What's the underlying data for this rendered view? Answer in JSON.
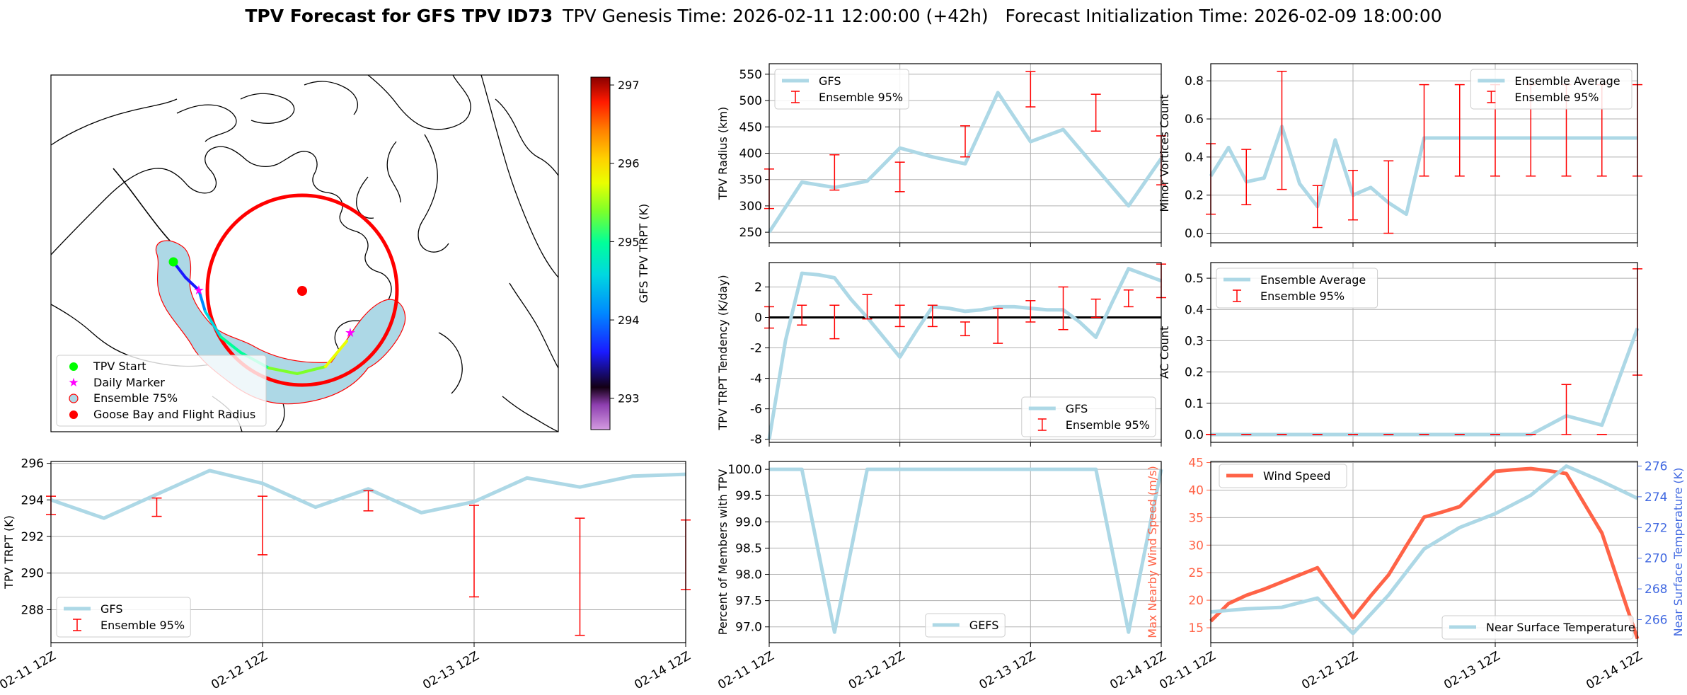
{
  "title": {
    "bold": "TPV Forecast for GFS TPV ID73",
    "rest": "TPV Genesis Time: 2026-02-11 12:00:00 (+42h)   Forecast Initialization Time: 2026-02-09 18:00:00"
  },
  "colors": {
    "series": "#add8e6",
    "errorbar": "#ff0000",
    "wind": "#ff6347",
    "temp_axis": "#4169e1",
    "start": "#00ff00",
    "marker": "#ff00ff",
    "goose": "#ff0000"
  },
  "map": {
    "legend": [
      "TPV Start",
      "Daily Marker",
      "Ensemble 75%",
      "Goose Bay and Flight Radius"
    ],
    "colorbar": {
      "label": "GFS TPV TRPT (K)",
      "ticks": [
        293,
        294,
        295,
        296,
        297
      ],
      "range": [
        292.6,
        297.1
      ]
    },
    "track_trpt": [
      293.2,
      293.5,
      293.8,
      294.3,
      294.6,
      294.8,
      295.0,
      295.3,
      295.6
    ]
  },
  "chart_data": [
    {
      "id": "trpt",
      "type": "line",
      "ylabel": "TPV TRPT (K)",
      "ylim": [
        286.2,
        296.1
      ],
      "yticks": [
        288,
        290,
        292,
        294,
        296
      ],
      "xticks": [
        "02-11 12Z",
        "02-12 12Z",
        "02-13 12Z",
        "02-14 12Z"
      ],
      "xlim": [
        0,
        12
      ],
      "series": [
        {
          "name": "GFS",
          "x": [
            0,
            1,
            2,
            3,
            4,
            5,
            6,
            7,
            8,
            9,
            10,
            11,
            12
          ],
          "values": [
            294.0,
            293.0,
            294.3,
            295.6,
            294.9,
            293.6,
            294.6,
            293.3,
            293.9,
            295.2,
            294.7,
            295.3,
            295.4
          ]
        }
      ],
      "errorbars": {
        "name": "Ensemble 95%",
        "x": [
          0,
          2,
          4,
          6,
          8,
          10,
          12
        ],
        "low": [
          293.2,
          293.1,
          291.0,
          293.4,
          288.7,
          286.6,
          289.1
        ],
        "high": [
          294.2,
          294.1,
          294.2,
          294.5,
          293.7,
          293.0,
          292.9
        ]
      },
      "legend": [
        "GFS",
        "Ensemble 95%"
      ],
      "legend_loc": "lower-left"
    },
    {
      "id": "radius",
      "type": "line",
      "ylabel": "TPV Radius (km)",
      "ylim": [
        230,
        570
      ],
      "yticks": [
        250,
        300,
        350,
        400,
        450,
        500,
        550
      ],
      "xticks": [
        "02-11 12Z",
        "02-12 12Z",
        "02-13 12Z",
        "02-14 12Z"
      ],
      "xlim": [
        0,
        12
      ],
      "series": [
        {
          "name": "GFS",
          "x": [
            0,
            1,
            2,
            3,
            4,
            5,
            6,
            7,
            8,
            9,
            10,
            11,
            12
          ],
          "values": [
            250,
            345,
            335,
            347,
            410,
            393,
            380,
            515,
            422,
            445,
            372,
            300,
            390
          ]
        }
      ],
      "errorbars": {
        "name": "Ensemble 95%",
        "x": [
          0,
          2,
          4,
          6,
          8,
          10,
          12
        ],
        "low": [
          295,
          330,
          327,
          393,
          488,
          442,
          340
        ],
        "high": [
          370,
          397,
          383,
          452,
          555,
          512,
          433
        ]
      },
      "legend": [
        "GFS",
        "Ensemble 95%"
      ],
      "legend_loc": "upper-left"
    },
    {
      "id": "tendency",
      "type": "line",
      "ylabel": "TPV TRPT Tendency (K/day)",
      "ylim": [
        -8.2,
        3.6
      ],
      "yticks": [
        -8,
        -6,
        -4,
        -2,
        0,
        2
      ],
      "hline": 0,
      "xticks": [
        "02-11 12Z",
        "02-12 12Z",
        "02-13 12Z",
        "02-14 12Z"
      ],
      "xlim": [
        0,
        12
      ],
      "series": [
        {
          "name": "GFS",
          "x": [
            0,
            0.5,
            1,
            1.5,
            2,
            2.5,
            3,
            3.5,
            4,
            4.5,
            5,
            5.5,
            6,
            6.5,
            7,
            7.5,
            8,
            8.5,
            9,
            9.5,
            10,
            10.5,
            11,
            11.5,
            12
          ],
          "values": [
            -8.0,
            -1.5,
            2.9,
            2.8,
            2.6,
            1.2,
            0.0,
            -1.3,
            -2.6,
            -0.9,
            0.7,
            0.6,
            0.4,
            0.5,
            0.7,
            0.7,
            0.6,
            0.5,
            0.5,
            -0.3,
            -1.3,
            1.0,
            3.2,
            2.8,
            2.4
          ]
        }
      ],
      "errorbars": {
        "name": "Ensemble 95%",
        "x": [
          0,
          1,
          2,
          3,
          4,
          5,
          6,
          7,
          8,
          9,
          10,
          11,
          12
        ],
        "low": [
          -0.7,
          -0.5,
          -1.4,
          -0.1,
          -0.6,
          -0.6,
          -1.2,
          -1.7,
          -0.3,
          -0.8,
          0.0,
          0.7,
          1.3
        ],
        "high": [
          0.7,
          0.8,
          0.8,
          1.5,
          0.8,
          0.8,
          -0.3,
          0.6,
          1.1,
          2.0,
          1.2,
          1.8,
          3.5
        ]
      },
      "legend": [
        "GFS",
        "Ensemble 95%"
      ],
      "legend_loc": "lower-right"
    },
    {
      "id": "members",
      "type": "line",
      "ylabel": "Percent of Members with TPV",
      "ylim": [
        96.7,
        100.15
      ],
      "yticks": [
        97.0,
        97.5,
        98.0,
        98.5,
        99.0,
        99.5,
        100.0
      ],
      "xticks": [
        "02-11 12Z",
        "02-12 12Z",
        "02-13 12Z",
        "02-14 12Z"
      ],
      "xlim": [
        0,
        12
      ],
      "series": [
        {
          "name": "GEFS",
          "x": [
            0,
            1,
            2,
            3,
            4,
            5,
            6,
            7,
            8,
            9,
            10,
            11,
            12
          ],
          "values": [
            100,
            100,
            96.9,
            100,
            100,
            100,
            100,
            100,
            100,
            100,
            100,
            96.9,
            100
          ]
        }
      ],
      "legend": [
        "GEFS"
      ],
      "legend_loc": "lower-center"
    },
    {
      "id": "minor",
      "type": "line",
      "ylabel": "Minor Vortices Count",
      "ylim": [
        -0.05,
        0.89
      ],
      "yticks": [
        0.0,
        0.2,
        0.4,
        0.6,
        0.8
      ],
      "xticks": [
        "02-11 12Z",
        "02-12 12Z",
        "02-13 12Z",
        "02-14 12Z"
      ],
      "xlim": [
        0,
        12
      ],
      "series": [
        {
          "name": "Ensemble Average",
          "x": [
            0,
            0.5,
            1,
            1.5,
            2,
            2.5,
            3,
            3.5,
            4,
            4.5,
            5,
            5.5,
            6,
            6.5,
            7,
            7.5,
            8,
            8.5,
            9,
            9.5,
            10,
            10.5,
            11,
            11.5,
            12
          ],
          "values": [
            0.3,
            0.45,
            0.27,
            0.29,
            0.56,
            0.26,
            0.14,
            0.49,
            0.2,
            0.24,
            0.16,
            0.1,
            0.5,
            0.5,
            0.5,
            0.5,
            0.5,
            0.5,
            0.5,
            0.5,
            0.5,
            0.5,
            0.5,
            0.5,
            0.5
          ]
        }
      ],
      "errorbars": {
        "name": "Ensemble 95%",
        "x": [
          0,
          1,
          2,
          3,
          4,
          5,
          6,
          7,
          8,
          9,
          10,
          11,
          12
        ],
        "low": [
          0.1,
          0.15,
          0.23,
          0.03,
          0.07,
          0.0,
          0.3,
          0.3,
          0.3,
          0.3,
          0.3,
          0.3,
          0.3
        ],
        "high": [
          0.47,
          0.44,
          0.85,
          0.25,
          0.33,
          0.38,
          0.78,
          0.78,
          0.78,
          0.78,
          0.78,
          0.78,
          0.78
        ]
      },
      "legend": [
        "Ensemble Average",
        "Ensemble 95%"
      ],
      "legend_loc": "upper-right"
    },
    {
      "id": "ac",
      "type": "line",
      "ylabel": "AC Count",
      "ylim": [
        -0.025,
        0.55
      ],
      "yticks": [
        0.0,
        0.1,
        0.2,
        0.3,
        0.4,
        0.5
      ],
      "xticks": [
        "02-11 12Z",
        "02-12 12Z",
        "02-13 12Z",
        "02-14 12Z"
      ],
      "xlim": [
        0,
        12
      ],
      "series": [
        {
          "name": "Ensemble Average",
          "x": [
            0,
            1,
            2,
            3,
            4,
            5,
            6,
            7,
            8,
            9,
            10,
            11,
            12
          ],
          "values": [
            0,
            0,
            0,
            0,
            0,
            0,
            0,
            0,
            0,
            0,
            0.06,
            0.03,
            0.34
          ]
        }
      ],
      "errorbars": {
        "name": "Ensemble 95%",
        "x": [
          0,
          1,
          2,
          3,
          4,
          5,
          6,
          7,
          8,
          9,
          10,
          11,
          12
        ],
        "low": [
          0,
          0,
          0,
          0,
          0,
          0,
          0,
          0,
          0,
          0,
          0,
          0,
          0.19
        ],
        "high": [
          0,
          0,
          0,
          0,
          0,
          0,
          0,
          0,
          0,
          0,
          0.16,
          0,
          0.53
        ]
      },
      "legend": [
        "Ensemble Average",
        "Ensemble 95%"
      ],
      "legend_loc": "upper-left"
    },
    {
      "id": "wind",
      "type": "line",
      "ylabel": "Max Nearby Wind Speed (m/s)",
      "ylabel2": "Near Surface Temperature (K)",
      "ylim": [
        12.3,
        45.2
      ],
      "yticks": [
        15,
        20,
        25,
        30,
        35,
        40,
        45
      ],
      "ylim2": [
        264.5,
        276.3
      ],
      "yticks2": [
        266,
        268,
        270,
        272,
        274,
        276
      ],
      "xticks": [
        "02-11 12Z",
        "02-12 12Z",
        "02-13 12Z",
        "02-14 12Z"
      ],
      "xlim": [
        0,
        12
      ],
      "series": [
        {
          "name": "Wind Speed",
          "axis": "left",
          "x": [
            0,
            0.5,
            1,
            1.5,
            2,
            2.5,
            3,
            3.5,
            4,
            4.5,
            5,
            5.5,
            6,
            6.5,
            7,
            7.5,
            8,
            8.5,
            9,
            9.5,
            10,
            10.5,
            11,
            11.5,
            12
          ],
          "values": [
            16.2,
            19.4,
            20.9,
            22.0,
            23.3,
            24.6,
            25.9,
            21.3,
            16.8,
            20.8,
            24.6,
            29.9,
            35.1,
            36.0,
            37.0,
            40.2,
            43.4,
            43.7,
            43.9,
            43.5,
            43.0,
            37.6,
            32.2,
            22.6,
            13.0
          ]
        },
        {
          "name": "Near Surface Temperature",
          "axis": "right",
          "x": [
            0,
            1,
            2,
            3,
            4,
            5,
            6,
            7,
            8,
            9,
            10,
            11,
            12
          ],
          "values": [
            266.5,
            266.7,
            266.8,
            267.4,
            265.1,
            267.6,
            270.6,
            272.0,
            272.9,
            274.1,
            276.0,
            275.0,
            273.9
          ]
        }
      ],
      "legend": [
        "Wind Speed",
        "Near Surface Temperature"
      ]
    }
  ]
}
